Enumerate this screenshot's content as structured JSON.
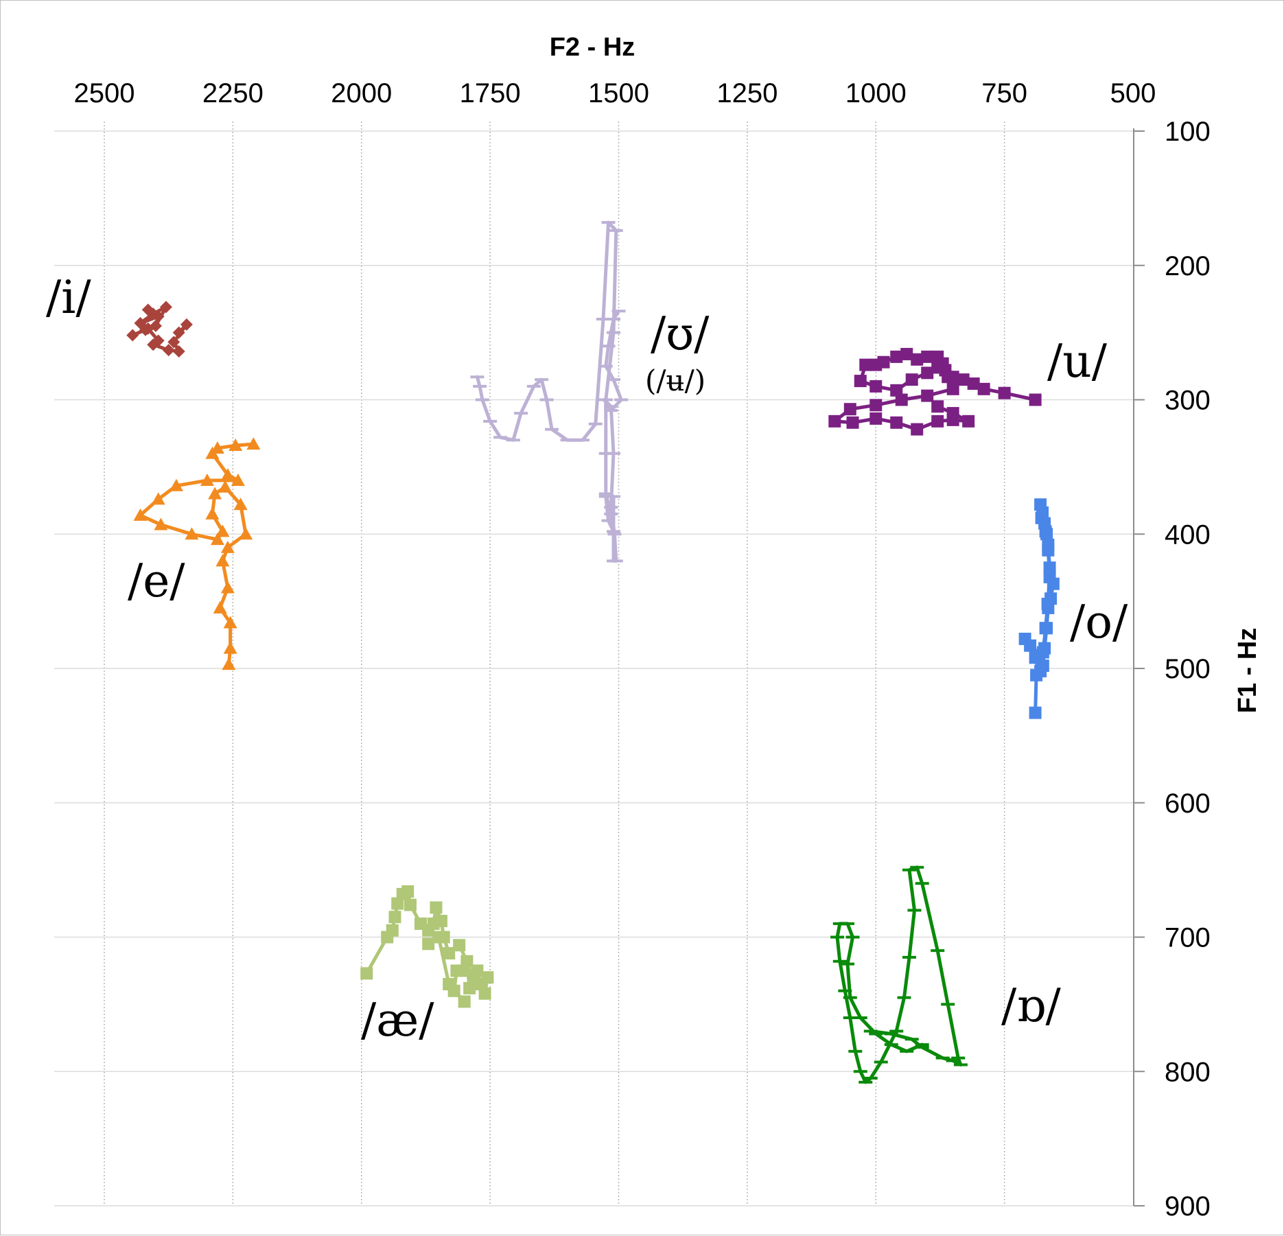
{
  "chart_data": {
    "type": "line",
    "title": "",
    "xlabel": "F2 - Hz",
    "ylabel": "F1 - Hz",
    "x_axis": {
      "position": "top",
      "reversed": true,
      "range": [
        2600,
        500
      ],
      "ticks": [
        2500,
        2250,
        2000,
        1750,
        1500,
        1250,
        1000,
        750,
        500
      ],
      "grid": "dotted"
    },
    "y_axis": {
      "position": "right",
      "reversed": true,
      "range": [
        100,
        900
      ],
      "ticks": [
        100,
        200,
        300,
        400,
        500,
        600,
        700,
        800,
        900
      ],
      "grid": "solid"
    },
    "legend": "none",
    "series": [
      {
        "label": "/i/",
        "marker": "diamond",
        "color": "#a9443c",
        "points": [
          [
            2415,
            233
          ],
          [
            2395,
            238
          ],
          [
            2430,
            243
          ],
          [
            2405,
            236
          ],
          [
            2380,
            231
          ],
          [
            2400,
            245
          ],
          [
            2420,
            248
          ],
          [
            2445,
            252
          ],
          [
            2415,
            247
          ],
          [
            2395,
            256
          ],
          [
            2405,
            259
          ],
          [
            2375,
            263
          ],
          [
            2355,
            264
          ],
          [
            2365,
            257
          ],
          [
            2340,
            244
          ],
          [
            2355,
            250
          ]
        ]
      },
      {
        "label": "/e/",
        "marker": "triangle",
        "color": "#f28b1f",
        "points": [
          [
            2210,
            333
          ],
          [
            2245,
            334
          ],
          [
            2280,
            336
          ],
          [
            2290,
            340
          ],
          [
            2260,
            356
          ],
          [
            2240,
            360
          ],
          [
            2300,
            360
          ],
          [
            2360,
            364
          ],
          [
            2395,
            374
          ],
          [
            2430,
            386
          ],
          [
            2390,
            393
          ],
          [
            2330,
            400
          ],
          [
            2280,
            404
          ],
          [
            2270,
            398
          ],
          [
            2290,
            385
          ],
          [
            2285,
            370
          ],
          [
            2265,
            365
          ],
          [
            2235,
            378
          ],
          [
            2225,
            400
          ],
          [
            2260,
            410
          ],
          [
            2270,
            420
          ],
          [
            2260,
            440
          ],
          [
            2275,
            455
          ],
          [
            2255,
            466
          ],
          [
            2255,
            485
          ],
          [
            2258,
            497
          ]
        ]
      },
      {
        "label": "/ʊ/",
        "marker": "dash",
        "color": "#bdb1d5",
        "points": [
          [
            1775,
            283
          ],
          [
            1770,
            290
          ],
          [
            1765,
            300
          ],
          [
            1750,
            316
          ],
          [
            1730,
            328
          ],
          [
            1705,
            330
          ],
          [
            1690,
            310
          ],
          [
            1665,
            290
          ],
          [
            1650,
            285
          ],
          [
            1640,
            300
          ],
          [
            1630,
            322
          ],
          [
            1600,
            330
          ],
          [
            1570,
            330
          ],
          [
            1545,
            318
          ],
          [
            1530,
            240
          ],
          [
            1520,
            168
          ],
          [
            1505,
            174
          ],
          [
            1510,
            250
          ],
          [
            1525,
            300
          ],
          [
            1525,
            340
          ],
          [
            1525,
            372
          ],
          [
            1520,
            390
          ],
          [
            1510,
            398
          ],
          [
            1515,
            385
          ],
          [
            1525,
            370
          ],
          [
            1510,
            372
          ],
          [
            1510,
            420
          ],
          [
            1505,
            420
          ],
          [
            1508,
            400
          ],
          [
            1515,
            380
          ],
          [
            1510,
            340
          ],
          [
            1515,
            305
          ],
          [
            1528,
            300
          ],
          [
            1515,
            308
          ],
          [
            1495,
            300
          ],
          [
            1510,
            285
          ],
          [
            1525,
            275
          ],
          [
            1520,
            260
          ],
          [
            1510,
            240
          ],
          [
            1500,
            234
          ]
        ]
      },
      {
        "label": "/u/",
        "marker": "square",
        "color": "#7b2083",
        "points": [
          [
            690,
            300
          ],
          [
            750,
            295
          ],
          [
            790,
            292
          ],
          [
            810,
            288
          ],
          [
            860,
            283
          ],
          [
            870,
            273
          ],
          [
            880,
            268
          ],
          [
            900,
            268
          ],
          [
            920,
            270
          ],
          [
            940,
            266
          ],
          [
            960,
            268
          ],
          [
            985,
            272
          ],
          [
            1000,
            274
          ],
          [
            1020,
            274
          ],
          [
            1030,
            286
          ],
          [
            1000,
            290
          ],
          [
            960,
            293
          ],
          [
            930,
            285
          ],
          [
            900,
            280
          ],
          [
            880,
            276
          ],
          [
            865,
            278
          ],
          [
            850,
            283
          ],
          [
            830,
            285
          ],
          [
            850,
            292
          ],
          [
            900,
            297
          ],
          [
            950,
            300
          ],
          [
            1000,
            304
          ],
          [
            1050,
            307
          ],
          [
            1080,
            316
          ],
          [
            1045,
            317
          ],
          [
            1000,
            314
          ],
          [
            960,
            317
          ],
          [
            920,
            322
          ],
          [
            880,
            316
          ],
          [
            850,
            315
          ],
          [
            820,
            316
          ],
          [
            850,
            310
          ],
          [
            880,
            305
          ]
        ]
      },
      {
        "label": "/o/",
        "marker": "square",
        "color": "#4a86e8",
        "points": [
          [
            690,
            533
          ],
          [
            688,
            505
          ],
          [
            686,
            490
          ],
          [
            700,
            483
          ],
          [
            710,
            478
          ],
          [
            690,
            492
          ],
          [
            675,
            498
          ],
          [
            672,
            485
          ],
          [
            668,
            470
          ],
          [
            665,
            455
          ],
          [
            660,
            448
          ],
          [
            655,
            437
          ],
          [
            662,
            425
          ],
          [
            665,
            408
          ],
          [
            668,
            400
          ],
          [
            672,
            392
          ],
          [
            676,
            384
          ],
          [
            680,
            378
          ],
          [
            678,
            388
          ],
          [
            670,
            398
          ],
          [
            665,
            412
          ],
          [
            662,
            432
          ],
          [
            666,
            452
          ],
          [
            670,
            470
          ],
          [
            675,
            488
          ],
          [
            680,
            502
          ]
        ]
      },
      {
        "label": "/æ/",
        "marker": "square",
        "color": "#afc776",
        "points": [
          [
            1990,
            727
          ],
          [
            1950,
            700
          ],
          [
            1940,
            695
          ],
          [
            1935,
            685
          ],
          [
            1930,
            675
          ],
          [
            1920,
            668
          ],
          [
            1910,
            666
          ],
          [
            1905,
            676
          ],
          [
            1885,
            690
          ],
          [
            1870,
            695
          ],
          [
            1860,
            690
          ],
          [
            1855,
            678
          ],
          [
            1845,
            688
          ],
          [
            1840,
            700
          ],
          [
            1830,
            712
          ],
          [
            1810,
            706
          ],
          [
            1795,
            718
          ],
          [
            1790,
            738
          ],
          [
            1780,
            728
          ],
          [
            1770,
            735
          ],
          [
            1760,
            742
          ],
          [
            1755,
            730
          ],
          [
            1775,
            725
          ],
          [
            1800,
            725
          ],
          [
            1815,
            725
          ],
          [
            1820,
            740
          ],
          [
            1800,
            748
          ],
          [
            1830,
            735
          ],
          [
            1850,
            700
          ],
          [
            1870,
            705
          ]
        ]
      },
      {
        "label": "/ɒ/",
        "marker": "dash",
        "color": "#0a8a0a",
        "points": [
          [
            1010,
            770
          ],
          [
            970,
            772
          ],
          [
            930,
            776
          ],
          [
            910,
            782
          ],
          [
            870,
            790
          ],
          [
            850,
            792
          ],
          [
            835,
            795
          ],
          [
            840,
            790
          ],
          [
            860,
            750
          ],
          [
            880,
            710
          ],
          [
            910,
            660
          ],
          [
            920,
            648
          ],
          [
            935,
            650
          ],
          [
            925,
            680
          ],
          [
            935,
            715
          ],
          [
            945,
            745
          ],
          [
            960,
            770
          ],
          [
            990,
            793
          ],
          [
            1010,
            805
          ],
          [
            1020,
            808
          ],
          [
            1030,
            800
          ],
          [
            1040,
            785
          ],
          [
            1050,
            760
          ],
          [
            1060,
            740
          ],
          [
            1070,
            718
          ],
          [
            1075,
            700
          ],
          [
            1070,
            690
          ],
          [
            1055,
            690
          ],
          [
            1045,
            700
          ],
          [
            1055,
            720
          ],
          [
            1050,
            745
          ],
          [
            1030,
            760
          ],
          [
            1000,
            772
          ],
          [
            970,
            780
          ],
          [
            940,
            785
          ],
          [
            910,
            780
          ]
        ]
      }
    ],
    "annotations": [
      {
        "text": "/i/",
        "series": "/i/"
      },
      {
        "text": "/e/",
        "series": "/e/"
      },
      {
        "text": "/ʊ/",
        "series": "/ʊ/"
      },
      {
        "text": "(/ʉ/)",
        "series": "/ʊ/"
      },
      {
        "text": "/u/",
        "series": "/u/"
      },
      {
        "text": "/o/",
        "series": "/o/"
      },
      {
        "text": "/æ/",
        "series": "/æ/"
      },
      {
        "text": "/ɒ/",
        "series": "/ɒ/"
      }
    ]
  }
}
